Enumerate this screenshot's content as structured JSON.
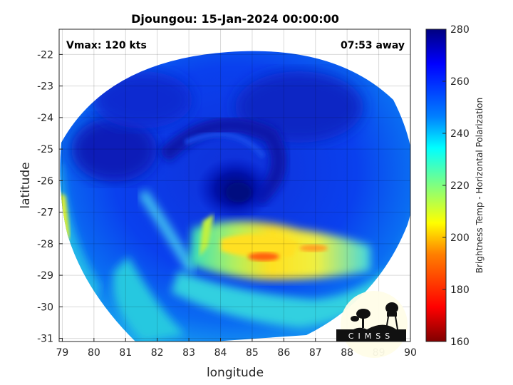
{
  "title": "Djoungou: 15-Jan-2024 00:00:00",
  "annotations": {
    "vmax": "Vmax: 120 kts",
    "time_away": "07:53 away"
  },
  "axes": {
    "xlabel": "longitude",
    "ylabel": "latitude",
    "xlim": [
      78.9,
      90
    ],
    "ylim": [
      -31.1,
      -21.2
    ],
    "x_ticks": [
      "79",
      "80",
      "81",
      "82",
      "83",
      "84",
      "85",
      "86",
      "87",
      "88",
      "89",
      "90"
    ],
    "y_ticks": [
      "-22",
      "-23",
      "-24",
      "-25",
      "-26",
      "-27",
      "-28",
      "-29",
      "-30",
      "-31"
    ],
    "grid": true
  },
  "colorbar": {
    "label": "Brightness Temp - Horizontal Polarization",
    "range": [
      160,
      280
    ],
    "ticks": [
      "280",
      "260",
      "240",
      "220",
      "200",
      "180",
      "160"
    ],
    "colormap": "jet",
    "colors": [
      "#800000",
      "#ff0000",
      "#ff8000",
      "#ffff00",
      "#80ff80",
      "#00ffff",
      "#0080ff",
      "#0000ff",
      "#000080"
    ]
  },
  "imagery": {
    "storm_center": {
      "lon": 84.5,
      "lat": -26.3,
      "tb": 258
    },
    "warm_band_min_tb": 190,
    "swath_edge_tb": 232
  },
  "logo": {
    "text": "CIMSS"
  }
}
